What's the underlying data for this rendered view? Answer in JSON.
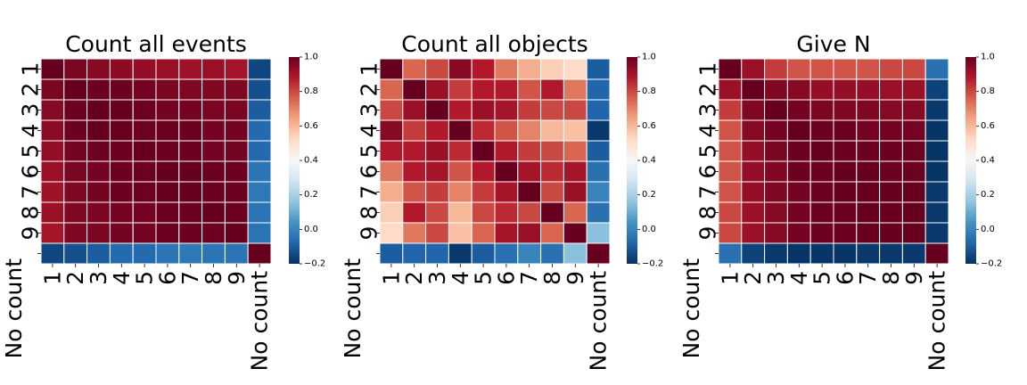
{
  "chart_data": [
    {
      "type": "heatmap",
      "title": "Count all events",
      "labels": [
        "1",
        "2",
        "3",
        "4",
        "5",
        "6",
        "7",
        "8",
        "9",
        "No count"
      ],
      "colorbar": {
        "range": [
          -0.2,
          1.0
        ],
        "ticks": [
          "1.0",
          "0.8",
          "0.6",
          "0.4",
          "0.2",
          "0.0",
          "−0.2"
        ]
      },
      "values": [
        [
          1.0,
          0.97,
          0.95,
          0.94,
          0.93,
          0.92,
          0.91,
          0.92,
          0.9,
          -0.15
        ],
        [
          0.97,
          1.0,
          0.99,
          0.99,
          0.98,
          0.97,
          0.96,
          0.96,
          0.96,
          -0.13
        ],
        [
          0.95,
          0.99,
          1.0,
          1.0,
          0.99,
          0.98,
          0.98,
          0.97,
          0.97,
          -0.1
        ],
        [
          0.94,
          0.99,
          1.0,
          1.0,
          0.99,
          0.99,
          0.99,
          0.98,
          0.98,
          -0.07
        ],
        [
          0.93,
          0.98,
          0.99,
          0.99,
          1.0,
          0.99,
          0.99,
          0.98,
          0.98,
          -0.07
        ],
        [
          0.92,
          0.97,
          0.98,
          0.99,
          0.99,
          1.0,
          1.0,
          0.99,
          0.99,
          -0.04
        ],
        [
          0.91,
          0.96,
          0.98,
          0.99,
          0.99,
          1.0,
          1.0,
          0.99,
          0.99,
          -0.03
        ],
        [
          0.92,
          0.96,
          0.97,
          0.98,
          0.98,
          0.99,
          0.99,
          1.0,
          0.99,
          -0.04
        ],
        [
          0.9,
          0.96,
          0.97,
          0.98,
          0.98,
          0.99,
          0.99,
          0.99,
          1.0,
          -0.04
        ],
        [
          -0.15,
          -0.13,
          -0.1,
          -0.07,
          -0.07,
          -0.04,
          -0.03,
          -0.04,
          -0.04,
          1.0
        ]
      ]
    },
    {
      "type": "heatmap",
      "title": "Count all objects",
      "labels": [
        "1",
        "2",
        "3",
        "4",
        "5",
        "6",
        "7",
        "8",
        "9",
        "No count"
      ],
      "colorbar": {
        "range": [
          -0.2,
          1.0
        ],
        "ticks": [
          "1.0",
          "0.8",
          "0.6",
          "0.4",
          "0.2",
          "0.0",
          "−0.2"
        ]
      },
      "values": [
        [
          1.0,
          0.75,
          0.8,
          0.95,
          0.88,
          0.72,
          0.62,
          0.55,
          0.52,
          -0.1
        ],
        [
          0.75,
          1.0,
          0.92,
          0.82,
          0.88,
          0.88,
          0.78,
          0.88,
          0.72,
          -0.08
        ],
        [
          0.8,
          0.92,
          1.0,
          0.88,
          0.92,
          0.9,
          0.82,
          0.8,
          0.8,
          -0.08
        ],
        [
          0.95,
          0.82,
          0.88,
          1.0,
          0.85,
          0.78,
          0.7,
          0.6,
          0.58,
          -0.18
        ],
        [
          0.88,
          0.88,
          0.92,
          0.85,
          1.0,
          0.88,
          0.82,
          0.8,
          0.75,
          -0.1
        ],
        [
          0.72,
          0.88,
          0.9,
          0.78,
          0.88,
          1.0,
          0.9,
          0.85,
          0.9,
          -0.05
        ],
        [
          0.62,
          0.78,
          0.82,
          0.7,
          0.82,
          0.9,
          1.0,
          0.8,
          0.92,
          0.0
        ],
        [
          0.55,
          0.88,
          0.8,
          0.6,
          0.8,
          0.85,
          0.8,
          1.0,
          0.75,
          -0.05
        ],
        [
          0.52,
          0.72,
          0.8,
          0.58,
          0.75,
          0.9,
          0.92,
          0.75,
          1.0,
          0.15
        ],
        [
          -0.1,
          -0.08,
          -0.08,
          -0.18,
          -0.1,
          -0.05,
          0.0,
          -0.05,
          0.15,
          1.0
        ]
      ]
    },
    {
      "type": "heatmap",
      "title": "Give N",
      "labels": [
        "1",
        "2",
        "3",
        "4",
        "5",
        "6",
        "7",
        "8",
        "9",
        "No count"
      ],
      "colorbar": {
        "range": [
          -0.2,
          1.0
        ],
        "ticks": [
          "1.0",
          "0.8",
          "0.6",
          "0.4",
          "0.2",
          "0.0",
          "−0.2"
        ]
      },
      "values": [
        [
          1.0,
          0.92,
          0.82,
          0.78,
          0.78,
          0.78,
          0.78,
          0.8,
          0.8,
          -0.05
        ],
        [
          0.92,
          1.0,
          0.96,
          0.95,
          0.93,
          0.93,
          0.93,
          0.92,
          0.92,
          -0.16
        ],
        [
          0.82,
          0.96,
          1.0,
          0.98,
          0.97,
          0.96,
          0.96,
          0.95,
          0.95,
          -0.18
        ],
        [
          0.78,
          0.95,
          0.98,
          1.0,
          0.99,
          0.99,
          0.98,
          0.98,
          0.98,
          -0.19
        ],
        [
          0.78,
          0.93,
          0.97,
          0.99,
          1.0,
          0.99,
          0.99,
          0.99,
          0.99,
          -0.19
        ],
        [
          0.78,
          0.93,
          0.96,
          0.99,
          0.99,
          1.0,
          1.0,
          0.99,
          0.99,
          -0.19
        ],
        [
          0.78,
          0.93,
          0.96,
          0.98,
          0.99,
          1.0,
          1.0,
          1.0,
          1.0,
          -0.18
        ],
        [
          0.8,
          0.92,
          0.95,
          0.98,
          0.99,
          0.99,
          1.0,
          1.0,
          1.0,
          -0.18
        ],
        [
          0.8,
          0.92,
          0.95,
          0.98,
          0.99,
          0.99,
          1.0,
          1.0,
          1.0,
          -0.18
        ],
        [
          -0.05,
          -0.16,
          -0.18,
          -0.19,
          -0.19,
          -0.19,
          -0.18,
          -0.18,
          -0.18,
          1.0
        ]
      ]
    }
  ]
}
